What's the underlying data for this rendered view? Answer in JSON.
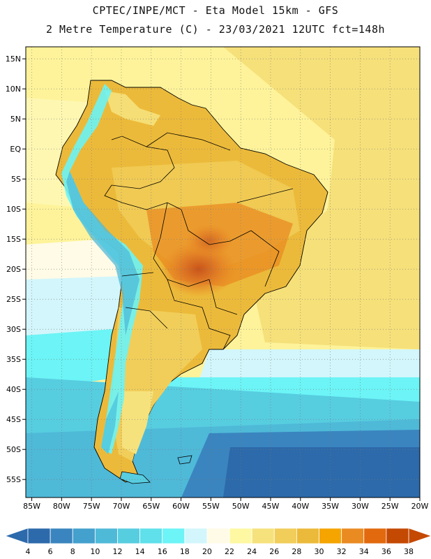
{
  "header": {
    "line1": "CPTEC/INPE/MCT -  Eta Model 15km - GFS",
    "line2": "2 Metre Temperature (C) - 23/03/2021 12UTC fct=148h"
  },
  "map": {
    "lon_range": [
      -86,
      -20
    ],
    "lat_range": [
      -58,
      17
    ],
    "lon_ticks": [
      {
        "value": -85,
        "label": "85W"
      },
      {
        "value": -80,
        "label": "80W"
      },
      {
        "value": -75,
        "label": "75W"
      },
      {
        "value": -70,
        "label": "70W"
      },
      {
        "value": -65,
        "label": "65W"
      },
      {
        "value": -60,
        "label": "60W"
      },
      {
        "value": -55,
        "label": "55W"
      },
      {
        "value": -50,
        "label": "50W"
      },
      {
        "value": -45,
        "label": "45W"
      },
      {
        "value": -40,
        "label": "40W"
      },
      {
        "value": -35,
        "label": "35W"
      },
      {
        "value": -30,
        "label": "30W"
      },
      {
        "value": -25,
        "label": "25W"
      },
      {
        "value": -20,
        "label": "20W"
      }
    ],
    "lat_ticks": [
      {
        "value": 15,
        "label": "15N"
      },
      {
        "value": 10,
        "label": "10N"
      },
      {
        "value": 5,
        "label": "5N"
      },
      {
        "value": 0,
        "label": "EQ"
      },
      {
        "value": -5,
        "label": "5S"
      },
      {
        "value": -10,
        "label": "10S"
      },
      {
        "value": -15,
        "label": "15S"
      },
      {
        "value": -20,
        "label": "20S"
      },
      {
        "value": -25,
        "label": "25S"
      },
      {
        "value": -30,
        "label": "30S"
      },
      {
        "value": -35,
        "label": "35S"
      },
      {
        "value": -40,
        "label": "40S"
      },
      {
        "value": -45,
        "label": "45S"
      },
      {
        "value": -50,
        "label": "50S"
      },
      {
        "value": -55,
        "label": "55S"
      }
    ]
  },
  "colorbar": {
    "labels": [
      "4",
      "6",
      "8",
      "10",
      "12",
      "14",
      "16",
      "18",
      "20",
      "22",
      "24",
      "26",
      "28",
      "30",
      "32",
      "34",
      "36",
      "38"
    ],
    "colors": [
      "#2c6aab",
      "#3a85bf",
      "#44a0cd",
      "#4fb9d8",
      "#57cde0",
      "#5fe0ea",
      "#6cf4f6",
      "#d2f6fb",
      "#fffbe6",
      "#fef8a2",
      "#f6e27c",
      "#f1ce5a",
      "#ecba3a",
      "#f5a400",
      "#ea8b22",
      "#e2690d",
      "#c44903"
    ],
    "low_color": "#2c6aab",
    "high_color": "#c44903"
  }
}
